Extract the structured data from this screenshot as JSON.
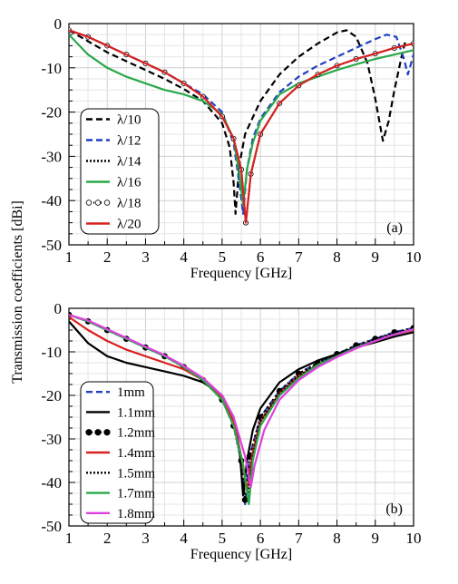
{
  "ylabel": "Transmission coefficients [dBi]",
  "chart_data": [
    {
      "type": "line",
      "panel_label": "(a)",
      "xlabel": "Frequency [GHz]",
      "xlim": [
        1,
        10
      ],
      "ylim": [
        -50,
        0
      ],
      "x_ticks": [
        "1",
        "2",
        "3",
        "4",
        "5",
        "6",
        "7",
        "8",
        "9",
        "10"
      ],
      "y_ticks": [
        "0",
        "-10",
        "-20",
        "-30",
        "-40",
        "-50"
      ],
      "grid": true,
      "legend_position": "lower-left",
      "series": [
        {
          "name": "λ/10",
          "color": "#000000",
          "dash": "7,4",
          "marker": "none",
          "x": [
            1,
            1.5,
            2,
            2.5,
            3,
            3.5,
            4,
            4.5,
            5,
            5.2,
            5.3,
            5.35,
            5.45,
            5.6,
            6,
            6.5,
            7,
            7.5,
            8,
            8.25,
            8.5,
            8.8,
            9,
            9.2,
            9.35,
            9.5,
            9.7,
            9.8
          ],
          "y": [
            -1.5,
            -4,
            -6.5,
            -8.5,
            -10.5,
            -12.5,
            -14.8,
            -17.5,
            -22.5,
            -28,
            -36,
            -43,
            -32,
            -25,
            -17.5,
            -11.5,
            -7.5,
            -4.5,
            -2,
            -1.5,
            -3,
            -9,
            -17,
            -26.5,
            -22,
            -15,
            -7,
            -3.5
          ]
        },
        {
          "name": "λ/12",
          "color": "#1f3fbf",
          "dash": "7,4",
          "marker": "none",
          "x": [
            1,
            1.5,
            2,
            2.5,
            3,
            3.5,
            4,
            4.5,
            5,
            5.3,
            5.45,
            5.55,
            5.65,
            5.8,
            6,
            6.5,
            7,
            7.5,
            8,
            8.5,
            9,
            9.3,
            9.55,
            9.75,
            9.85,
            10
          ],
          "y": [
            -1.5,
            -3,
            -5,
            -7,
            -9,
            -11,
            -13.5,
            -16,
            -20,
            -27,
            -36,
            -43,
            -33,
            -26,
            -21.5,
            -15.5,
            -12,
            -9.5,
            -7.5,
            -5.5,
            -3.5,
            -2.5,
            -3,
            -8,
            -11.5,
            -7
          ]
        },
        {
          "name": "λ/14",
          "color": "#000000",
          "dash": "2,2",
          "marker": "none",
          "x": [
            1,
            1.5,
            2,
            2.5,
            3,
            3.5,
            4,
            4.5,
            5,
            5.3,
            5.5,
            5.62,
            5.75,
            6,
            6.5,
            7,
            7.5,
            8,
            8.5,
            9,
            9.5,
            10
          ],
          "y": [
            -1.5,
            -3,
            -5,
            -7,
            -9,
            -11,
            -13.5,
            -16.5,
            -21,
            -26,
            -33,
            -45,
            -34,
            -25,
            -18,
            -14,
            -11.5,
            -9.5,
            -8,
            -6.8,
            -5.5,
            -4.5
          ]
        },
        {
          "name": "λ/16",
          "color": "#2aa84a",
          "dash": "",
          "marker": "none",
          "x": [
            1,
            1.5,
            2,
            2.5,
            3,
            3.5,
            4,
            4.5,
            5,
            5.3,
            5.45,
            5.55,
            5.65,
            5.8,
            6,
            6.5,
            7,
            7.5,
            8,
            8.5,
            9,
            9.5,
            10
          ],
          "y": [
            -2.5,
            -7,
            -10,
            -12,
            -13.5,
            -15,
            -16,
            -17.5,
            -20.5,
            -26,
            -34,
            -41,
            -33,
            -27,
            -22,
            -16,
            -13.5,
            -12,
            -10.5,
            -9.2,
            -8,
            -7,
            -6
          ]
        },
        {
          "name": "λ/18",
          "color": "#000000",
          "dash": "1,3",
          "marker": "circle",
          "x": [
            1,
            1.5,
            2,
            2.5,
            3,
            3.5,
            4,
            4.5,
            5,
            5.3,
            5.5,
            5.62,
            5.75,
            6,
            6.5,
            7,
            7.5,
            8,
            8.5,
            9,
            9.5,
            10
          ],
          "y": [
            -1.5,
            -3,
            -5,
            -7,
            -9,
            -11,
            -13.5,
            -16.5,
            -21,
            -26,
            -33,
            -45,
            -34,
            -25,
            -18,
            -14,
            -11.5,
            -9.5,
            -8,
            -6.8,
            -5.5,
            -4.5
          ]
        },
        {
          "name": "λ/20",
          "color": "#d92020",
          "dash": "",
          "marker": "none",
          "x": [
            1,
            1.5,
            2,
            2.5,
            3,
            3.5,
            4,
            4.5,
            5,
            5.3,
            5.5,
            5.62,
            5.75,
            6,
            6.5,
            7,
            7.5,
            8,
            8.5,
            9,
            9.5,
            10
          ],
          "y": [
            -1.5,
            -3,
            -5,
            -7,
            -9,
            -11,
            -13.5,
            -16.5,
            -21,
            -26,
            -33,
            -45,
            -34,
            -25,
            -18,
            -14,
            -11.5,
            -9.5,
            -8,
            -6.8,
            -5.5,
            -4.5
          ]
        }
      ]
    },
    {
      "type": "line",
      "panel_label": "(b)",
      "xlabel": "Frequency [GHz]",
      "xlim": [
        1,
        10
      ],
      "ylim": [
        -50,
        0
      ],
      "x_ticks": [
        "1",
        "2",
        "3",
        "4",
        "5",
        "6",
        "7",
        "8",
        "9",
        "10"
      ],
      "y_ticks": [
        "0",
        "-10",
        "-20",
        "-30",
        "-40",
        "-50"
      ],
      "grid": true,
      "legend_position": "lower-left",
      "series": [
        {
          "name": "1mm",
          "color": "#1f3fbf",
          "dash": "7,4",
          "marker": "none",
          "x": [
            1,
            1.5,
            2,
            2.5,
            3,
            3.5,
            4,
            4.5,
            5,
            5.3,
            5.5,
            5.6,
            5.72,
            6,
            6.5,
            7,
            7.5,
            8,
            8.5,
            9,
            9.5,
            10
          ],
          "y": [
            -1.5,
            -3,
            -5,
            -7,
            -9,
            -11,
            -13.5,
            -16.5,
            -21,
            -27,
            -35,
            -45,
            -34,
            -25,
            -19,
            -15,
            -12.5,
            -10.5,
            -8.5,
            -7,
            -5.5,
            -4.5
          ]
        },
        {
          "name": "1.1mm",
          "color": "#000000",
          "dash": "",
          "marker": "none",
          "x": [
            1,
            1.5,
            2,
            2.5,
            3,
            3.5,
            4,
            4.5,
            5,
            5.3,
            5.45,
            5.55,
            5.65,
            5.8,
            6,
            6.5,
            7,
            7.5,
            8,
            8.5,
            9,
            9.5,
            10
          ],
          "y": [
            -3,
            -8,
            -11,
            -12.5,
            -13.5,
            -14.5,
            -15.5,
            -17,
            -20,
            -25,
            -32,
            -43,
            -35,
            -28,
            -23,
            -17,
            -14,
            -12,
            -10.5,
            -9,
            -7.8,
            -6.5,
            -5.5
          ]
        },
        {
          "name": "1.2mm",
          "color": "#000000",
          "dash": "2,3",
          "marker": "dot",
          "x": [
            1,
            1.5,
            2,
            2.5,
            3,
            3.5,
            4,
            4.5,
            5,
            5.3,
            5.5,
            5.6,
            5.72,
            6,
            6.5,
            7,
            7.5,
            8,
            8.5,
            9,
            9.5,
            10
          ],
          "y": [
            -1.5,
            -3,
            -5,
            -7,
            -9,
            -11,
            -13.5,
            -16.5,
            -21,
            -27,
            -35,
            -44,
            -34,
            -25,
            -19,
            -15,
            -12.5,
            -10.5,
            -8.5,
            -7,
            -5.5,
            -4.5
          ]
        },
        {
          "name": "1.4mm",
          "color": "#d92020",
          "dash": "",
          "marker": "none",
          "x": [
            1,
            1.5,
            2,
            2.5,
            3,
            3.5,
            4,
            4.5,
            5,
            5.3,
            5.5,
            5.65,
            5.8,
            6,
            6.5,
            7,
            7.5,
            8,
            8.5,
            9,
            9.5,
            10
          ],
          "y": [
            -2,
            -5,
            -7.5,
            -9.5,
            -11,
            -12.5,
            -14,
            -16.5,
            -20.5,
            -26,
            -34,
            -42,
            -33,
            -26,
            -19.5,
            -15.5,
            -13,
            -11,
            -9,
            -7.5,
            -6,
            -5
          ]
        },
        {
          "name": "1.5mm",
          "color": "#000000",
          "dash": "2,2",
          "marker": "none",
          "x": [
            1,
            1.5,
            2,
            2.5,
            3,
            3.5,
            4,
            4.5,
            5,
            5.3,
            5.55,
            5.68,
            5.8,
            6,
            6.5,
            7,
            7.5,
            8,
            8.5,
            9,
            9.5,
            10
          ],
          "y": [
            -1.5,
            -3,
            -5,
            -7,
            -9,
            -11,
            -13.5,
            -16.5,
            -21,
            -27,
            -36,
            -43,
            -34,
            -26,
            -19.5,
            -15.5,
            -12.8,
            -10.8,
            -8.8,
            -7.2,
            -5.7,
            -4.6
          ]
        },
        {
          "name": "1.7mm",
          "color": "#2aa84a",
          "dash": "",
          "marker": "none",
          "x": [
            1,
            1.5,
            2,
            2.5,
            3,
            3.5,
            4,
            4.5,
            5,
            5.3,
            5.55,
            5.7,
            5.8,
            6,
            6.5,
            7,
            7.5,
            8,
            8.5,
            9,
            9.5,
            10
          ],
          "y": [
            -1.5,
            -3,
            -5,
            -7,
            -9,
            -11,
            -13.5,
            -16.5,
            -21,
            -27,
            -36,
            -45,
            -35,
            -27,
            -20,
            -16,
            -13,
            -11,
            -9,
            -7.5,
            -6,
            -4.8
          ]
        },
        {
          "name": "1.8mm",
          "color": "#e040e0",
          "dash": "",
          "marker": "none",
          "x": [
            1,
            1.5,
            2,
            2.5,
            3,
            3.5,
            4,
            4.5,
            5,
            5.3,
            5.6,
            5.75,
            5.85,
            6.1,
            6.5,
            7,
            7.5,
            8,
            8.5,
            9,
            9.5,
            10
          ],
          "y": [
            -1.5,
            -2.8,
            -4.8,
            -6.8,
            -8.8,
            -10.8,
            -13.2,
            -16,
            -20,
            -25,
            -34,
            -41,
            -36,
            -28,
            -21,
            -16.5,
            -13.5,
            -11.2,
            -9.2,
            -7.5,
            -6,
            -4.8
          ]
        }
      ]
    }
  ]
}
